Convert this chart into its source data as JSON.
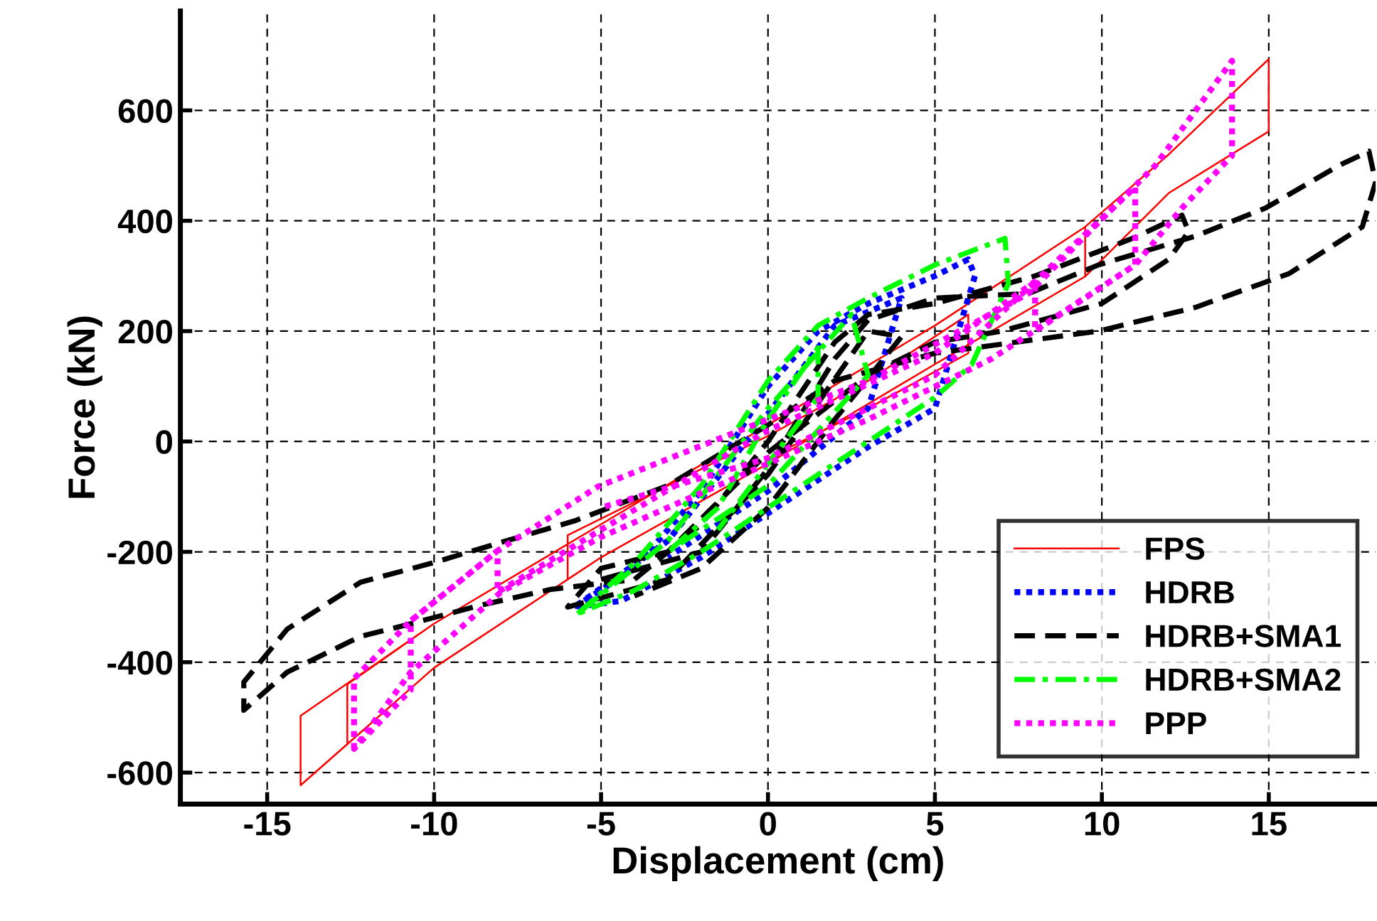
{
  "chart_data": {
    "type": "line",
    "xlabel": "Displacement (cm)",
    "ylabel": "Force (kN)",
    "xlim": [
      -17.6,
      18.2
    ],
    "ylim": [
      -657,
      780
    ],
    "xticks": [
      -15,
      -10,
      -5,
      0,
      5,
      10,
      15
    ],
    "yticks": [
      -600,
      -400,
      -200,
      0,
      200,
      400,
      600
    ],
    "grid": true,
    "legend": "bottom right",
    "series": [
      {
        "name": "FPS",
        "color": "#ff0000",
        "line_style": "solid",
        "x": [
          -12.6,
          -12.6,
          -10,
          -5,
          0,
          5,
          9.5,
          9.5,
          5,
          0,
          -5,
          -10,
          -14,
          -14,
          -10,
          -5,
          0,
          5,
          9.5,
          12,
          15,
          15,
          12,
          9.5,
          5,
          0,
          -5,
          -6,
          -6,
          -3,
          0,
          3,
          6,
          6,
          3,
          0
        ],
        "values": [
          -545,
          -440,
          -330,
          -150,
          30,
          210,
          389,
          299,
          140,
          -40,
          -210,
          -410,
          -623,
          -497,
          -330,
          -150,
          30,
          210,
          389,
          520,
          693,
          562,
          450,
          299,
          140,
          -40,
          -210,
          -250,
          -170,
          -80,
          10,
          110,
          230,
          160,
          60,
          -30
        ]
      },
      {
        "name": "HDRB",
        "color": "#0000ff",
        "line_style": "dotted",
        "x": [
          -5.8,
          -4,
          -2,
          0,
          1.5,
          3,
          5,
          6,
          6.2,
          5,
          3,
          0,
          -2,
          -4.4,
          -5.8,
          -3,
          0,
          2,
          4,
          3,
          0,
          -3
        ],
        "values": [
          -300,
          -230,
          -90,
          100,
          200,
          250,
          300,
          330,
          300,
          60,
          -10,
          -130,
          -210,
          -289,
          -300,
          -180,
          50,
          210,
          260,
          60,
          -90,
          -210
        ]
      },
      {
        "name": "HDRB+SMA1",
        "color": "#000000",
        "line_style": "dashed",
        "x": [
          -5,
          -2,
          0,
          2,
          3,
          5,
          7.8,
          9.9,
          12.8,
          14.9,
          17.1,
          18.0,
          18.2,
          17.8,
          15.6,
          12.8,
          9.9,
          7.8,
          5,
          2,
          0,
          -3,
          -5.8,
          -8,
          -10.1,
          -12.2,
          -14.4,
          -15.7,
          -15.7,
          -14.4,
          -12.2,
          -10.8,
          -8.7,
          -6.5,
          -4,
          -2,
          0,
          2,
          3,
          5,
          8,
          11,
          12.4,
          12.6,
          12,
          10,
          7,
          5,
          3,
          0,
          -3,
          -5,
          -6,
          -3,
          0,
          3,
          4,
          2,
          0,
          -2,
          -4
        ],
        "values": [
          -250,
          -200,
          -50,
          150,
          220,
          260,
          268,
          320,
          372,
          423,
          500,
          526,
          470,
          389,
          304,
          243,
          200,
          183,
          160,
          110,
          30,
          -80,
          -144,
          -183,
          -221,
          -255,
          -340,
          -436,
          -487,
          -418,
          -353,
          -332,
          -298,
          -268,
          -250,
          -150,
          0,
          180,
          230,
          250,
          300,
          370,
          410,
          380,
          330,
          250,
          200,
          180,
          120,
          -20,
          -200,
          -230,
          -300,
          -250,
          -60,
          200,
          190,
          40,
          -120,
          -230,
          -280
        ]
      },
      {
        "name": "HDRB+SMA2",
        "color": "#00ff00",
        "line_style": "dashdot",
        "x": [
          -5.7,
          -4,
          -2,
          0,
          1.5,
          3,
          5,
          7.1,
          7.2,
          6.1,
          5,
          3,
          0,
          -2,
          -4,
          -5.7,
          -3,
          0,
          2.5,
          3,
          0,
          -3,
          -1.5,
          0,
          1.5,
          1.5,
          0,
          -1.5
        ],
        "values": [
          -312,
          -220,
          -80,
          110,
          210,
          260,
          320,
          368,
          286,
          139,
          80,
          0,
          -120,
          -200,
          -270,
          -312,
          -180,
          60,
          230,
          120,
          -80,
          -200,
          -120,
          40,
          170,
          80,
          -40,
          -160
        ]
      },
      {
        "name": "PPP",
        "color": "#ff00ff",
        "line_style": "dotted",
        "x": [
          -12.4,
          -12.4,
          -10.7,
          -8.1,
          -5.1,
          0,
          3,
          7.8,
          9.9,
          11.6,
          13.9,
          13.9,
          12.4,
          11,
          6.7,
          3,
          0,
          -5,
          -8,
          -10.7,
          -12.4,
          -10.7,
          -10.7,
          -8.1,
          -8.1,
          -5,
          0,
          5,
          8,
          11,
          11,
          8,
          8,
          5,
          0,
          -5
        ],
        "values": [
          -557,
          -430,
          -325,
          -198,
          -82,
          40,
          110,
          268,
          397,
          500,
          690,
          518,
          423,
          320,
          150,
          40,
          -40,
          -173,
          -273,
          -418,
          -557,
          -450,
          -325,
          -198,
          -273,
          -160,
          20,
          160,
          290,
          461,
          320,
          200,
          290,
          120,
          -30,
          -120
        ]
      }
    ]
  }
}
